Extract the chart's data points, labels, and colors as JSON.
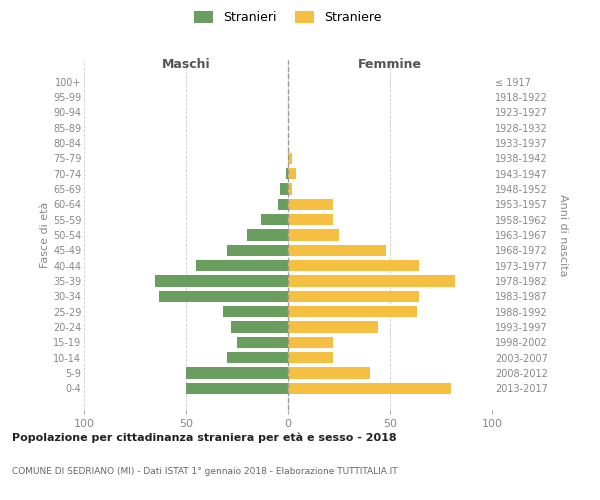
{
  "age_groups": [
    "0-4",
    "5-9",
    "10-14",
    "15-19",
    "20-24",
    "25-29",
    "30-34",
    "35-39",
    "40-44",
    "45-49",
    "50-54",
    "55-59",
    "60-64",
    "65-69",
    "70-74",
    "75-79",
    "80-84",
    "85-89",
    "90-94",
    "95-99",
    "100+"
  ],
  "birth_years": [
    "2013-2017",
    "2008-2012",
    "2003-2007",
    "1998-2002",
    "1993-1997",
    "1988-1992",
    "1983-1987",
    "1978-1982",
    "1973-1977",
    "1968-1972",
    "1963-1967",
    "1958-1962",
    "1953-1957",
    "1948-1952",
    "1943-1947",
    "1938-1942",
    "1933-1937",
    "1928-1932",
    "1923-1927",
    "1918-1922",
    "≤ 1917"
  ],
  "males": [
    50,
    50,
    30,
    25,
    28,
    32,
    63,
    65,
    45,
    30,
    20,
    13,
    5,
    4,
    1,
    0,
    0,
    0,
    0,
    0,
    0
  ],
  "females": [
    80,
    40,
    22,
    22,
    44,
    63,
    64,
    82,
    64,
    48,
    25,
    22,
    22,
    2,
    4,
    2,
    0,
    0,
    0,
    0,
    0
  ],
  "male_color": "#6a9e5e",
  "female_color": "#f5c042",
  "title": "Popolazione per cittadinanza straniera per età e sesso - 2018",
  "subtitle": "COMUNE DI SEDRIANO (MI) - Dati ISTAT 1° gennaio 2018 - Elaborazione TUTTITALIA.IT",
  "header_left": "Maschi",
  "header_right": "Femmine",
  "ylabel_left": "Fasce di età",
  "ylabel_right": "Anni di nascita",
  "legend_male": "Stranieri",
  "legend_female": "Straniere",
  "xlim": 100,
  "background_color": "#ffffff",
  "grid_color": "#cccccc",
  "bar_height": 0.75
}
